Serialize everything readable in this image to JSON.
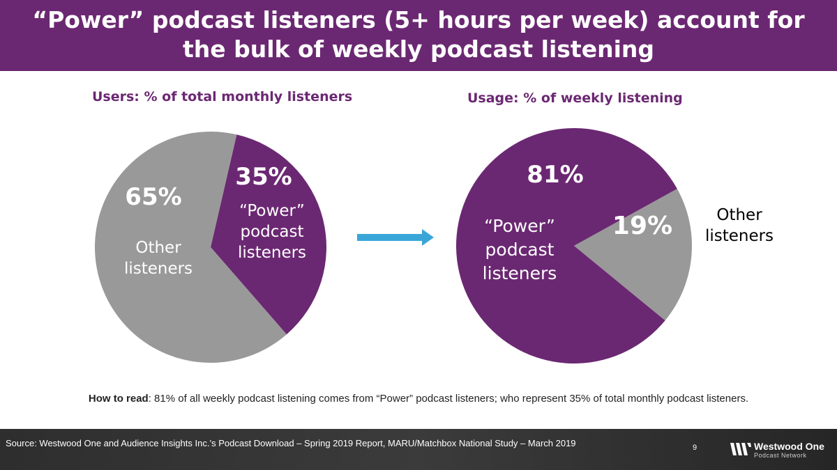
{
  "header": {
    "title": "“Power” podcast listeners (5+ hours per week) account for the bulk of weekly podcast listening"
  },
  "chart_data": [
    {
      "type": "pie",
      "title": "Users: % of total monthly listeners",
      "slices": [
        {
          "label_lines": [
            "“Power”",
            "podcast",
            "listeners"
          ],
          "value": 35,
          "value_label": "35%",
          "color": "#6b2872"
        },
        {
          "label_lines": [
            "Other",
            "listeners"
          ],
          "value": 65,
          "value_label": "65%",
          "color": "#999999"
        }
      ]
    },
    {
      "type": "pie",
      "title": "Usage: % of weekly listening",
      "slices": [
        {
          "label_lines": [
            "Other",
            "listeners"
          ],
          "value": 19,
          "value_label": "19%",
          "color": "#999999"
        },
        {
          "label_lines": [
            "“Power”",
            "podcast",
            "listeners"
          ],
          "value": 81,
          "value_label": "81%",
          "color": "#6b2872"
        }
      ]
    }
  ],
  "how_to_read": {
    "label": "How to read",
    "text": ": 81% of all weekly podcast listening comes from “Power” podcast listeners; who represent 35% of total monthly podcast listeners."
  },
  "footer": {
    "source": "Source: Westwood One and Audience Insights Inc.’s Podcast Download – Spring 2019 Report, MARU/Matchbox National Study – March 2019",
    "page_number": "9",
    "logo_name": "Westwood One",
    "logo_sub": "Podcast Network"
  },
  "colors": {
    "brand_purple": "#6b2872",
    "gray": "#999999",
    "arrow": "#3aa6d8"
  }
}
